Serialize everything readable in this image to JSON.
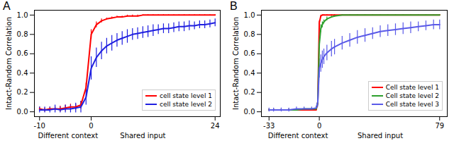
{
  "chart_data": [
    {
      "type": "line",
      "title": "A",
      "ylabel": "Intact-Random Correlation",
      "x": [
        -10,
        -9,
        -8,
        -7,
        -6,
        -5,
        -4,
        -3,
        -2,
        -1,
        0,
        1,
        2,
        3,
        4,
        5,
        6,
        7,
        8,
        9,
        10,
        11,
        12,
        13,
        14,
        15,
        16,
        17,
        18,
        19,
        20,
        21,
        22,
        23,
        24
      ],
      "series": [
        {
          "name": "cell state level 1",
          "color": "#ff0000",
          "values": [
            0.03,
            0.02,
            0.03,
            0.03,
            0.03,
            0.04,
            0.05,
            0.05,
            0.07,
            0.25,
            0.8,
            0.9,
            0.94,
            0.96,
            0.97,
            0.98,
            0.98,
            0.99,
            0.99,
            0.99,
            1.0,
            1.0,
            1.0,
            1.0,
            1.0,
            1.0,
            1.0,
            1.0,
            1.0,
            1.0,
            1.0,
            1.0,
            1.0,
            1.0,
            1.0
          ],
          "errors": [
            0.02,
            0.02,
            0.02,
            0.02,
            0.03,
            0.03,
            0.03,
            0.03,
            0.04,
            0.05,
            0.05,
            0.03,
            0.02,
            0.01,
            0.01,
            0.01,
            0.01,
            0.01,
            0.01,
            0.01,
            0.005,
            0.005,
            0.005,
            0.005,
            0.005,
            0.005,
            0.005,
            0.005,
            0.005,
            0.005,
            0.005,
            0.005,
            0.005,
            0.005,
            0.005
          ]
        },
        {
          "name": "cell state level 2",
          "color": "#1f1fe0",
          "values": [
            0.02,
            0.02,
            0.02,
            0.03,
            0.02,
            0.03,
            0.03,
            0.04,
            0.05,
            0.15,
            0.45,
            0.56,
            0.63,
            0.68,
            0.71,
            0.74,
            0.76,
            0.78,
            0.8,
            0.81,
            0.82,
            0.83,
            0.84,
            0.85,
            0.86,
            0.86,
            0.87,
            0.88,
            0.88,
            0.89,
            0.89,
            0.9,
            0.9,
            0.91,
            0.92
          ],
          "errors": [
            0.03,
            0.03,
            0.03,
            0.04,
            0.03,
            0.04,
            0.04,
            0.05,
            0.06,
            0.08,
            0.12,
            0.1,
            0.09,
            0.08,
            0.08,
            0.07,
            0.07,
            0.07,
            0.06,
            0.06,
            0.06,
            0.06,
            0.06,
            0.05,
            0.05,
            0.05,
            0.05,
            0.05,
            0.05,
            0.05,
            0.04,
            0.04,
            0.04,
            0.04,
            0.04
          ]
        }
      ],
      "xlim": [
        -11,
        25
      ],
      "xticks": [
        -10,
        0,
        24
      ],
      "ylim": [
        -0.05,
        1.05
      ],
      "yticks": [
        {
          "value": 0,
          "label": "0.0"
        },
        {
          "value": 0.2,
          "label": "0.2"
        },
        {
          "value": 0.4,
          "label": "0.4"
        },
        {
          "value": 0.6,
          "label": "0.6"
        },
        {
          "value": 0.8,
          "label": "0.8"
        },
        {
          "value": 1,
          "label": "1.0"
        }
      ],
      "annotations": [
        {
          "text": "Different context",
          "x": -4.5
        },
        {
          "text": "Shared input",
          "x": 10
        }
      ],
      "legend": "lower right"
    },
    {
      "type": "line",
      "title": "B",
      "ylabel": "Intact-Random Correlation",
      "x": [
        -33,
        -30,
        -25,
        -20,
        -15,
        -10,
        -5,
        -2,
        -1,
        0,
        1,
        2,
        3,
        5,
        8,
        10,
        15,
        20,
        25,
        30,
        35,
        40,
        45,
        50,
        55,
        60,
        65,
        70,
        75,
        79
      ],
      "series": [
        {
          "name": "Cell state level 1",
          "color": "#ff0000",
          "values": [
            0.02,
            0.02,
            0.02,
            0.02,
            0.02,
            0.02,
            0.02,
            0.02,
            0.1,
            0.92,
            0.99,
            1.0,
            1.0,
            1.0,
            1.0,
            1.0,
            1.0,
            1.0,
            1.0,
            1.0,
            1.0,
            1.0,
            1.0,
            1.0,
            1.0,
            1.0,
            1.0,
            1.0,
            1.0,
            1.0
          ],
          "errors": [
            0.01,
            0.01,
            0.01,
            0.01,
            0.01,
            0.01,
            0.01,
            0.01,
            0.02,
            0.02,
            0.01,
            0.005,
            0.005,
            0.005,
            0.005,
            0.005,
            0.005,
            0.005,
            0.005,
            0.005,
            0.005,
            0.005,
            0.005,
            0.005,
            0.005,
            0.005,
            0.005,
            0.005,
            0.005,
            0.005
          ]
        },
        {
          "name": "Cell state level 2",
          "color": "#2ca02c",
          "values": [
            0.02,
            0.02,
            0.02,
            0.02,
            0.02,
            0.03,
            0.03,
            0.03,
            0.1,
            0.7,
            0.86,
            0.9,
            0.93,
            0.96,
            0.98,
            0.99,
            1.0,
            1.0,
            1.0,
            1.0,
            1.0,
            1.0,
            1.0,
            1.0,
            1.0,
            1.0,
            1.0,
            1.0,
            1.0,
            1.0
          ],
          "errors": [
            0.01,
            0.01,
            0.01,
            0.01,
            0.01,
            0.01,
            0.01,
            0.01,
            0.03,
            0.05,
            0.04,
            0.03,
            0.02,
            0.02,
            0.01,
            0.01,
            0.005,
            0.005,
            0.005,
            0.005,
            0.005,
            0.005,
            0.005,
            0.005,
            0.005,
            0.005,
            0.005,
            0.005,
            0.005,
            0.005
          ]
        },
        {
          "name": "Cell state level 3",
          "color": "#5a5ae8",
          "values": [
            0.02,
            0.02,
            0.02,
            0.02,
            0.03,
            0.03,
            0.03,
            0.04,
            0.1,
            0.45,
            0.5,
            0.54,
            0.57,
            0.61,
            0.65,
            0.67,
            0.71,
            0.74,
            0.77,
            0.79,
            0.81,
            0.83,
            0.84,
            0.85,
            0.86,
            0.87,
            0.88,
            0.89,
            0.9,
            0.9
          ],
          "errors": [
            0.02,
            0.02,
            0.02,
            0.02,
            0.02,
            0.02,
            0.02,
            0.02,
            0.05,
            0.1,
            0.09,
            0.09,
            0.08,
            0.08,
            0.08,
            0.08,
            0.07,
            0.07,
            0.07,
            0.07,
            0.06,
            0.06,
            0.06,
            0.06,
            0.06,
            0.06,
            0.05,
            0.05,
            0.05,
            0.05
          ]
        }
      ],
      "xlim": [
        -38,
        84
      ],
      "xticks": [
        -33,
        0,
        79
      ],
      "ylim": [
        -0.05,
        1.05
      ],
      "yticks": [
        {
          "value": 0,
          "label": "0.0"
        },
        {
          "value": 0.2,
          "label": "0.2"
        },
        {
          "value": 0.4,
          "label": "0.4"
        },
        {
          "value": 0.6,
          "label": "0.6"
        },
        {
          "value": 0.8,
          "label": "0.8"
        },
        {
          "value": 1,
          "label": "1.0"
        }
      ],
      "annotations": [
        {
          "text": "Different context",
          "x": -14
        },
        {
          "text": "Shared input",
          "x": 40
        }
      ],
      "legend": "lower right"
    }
  ]
}
